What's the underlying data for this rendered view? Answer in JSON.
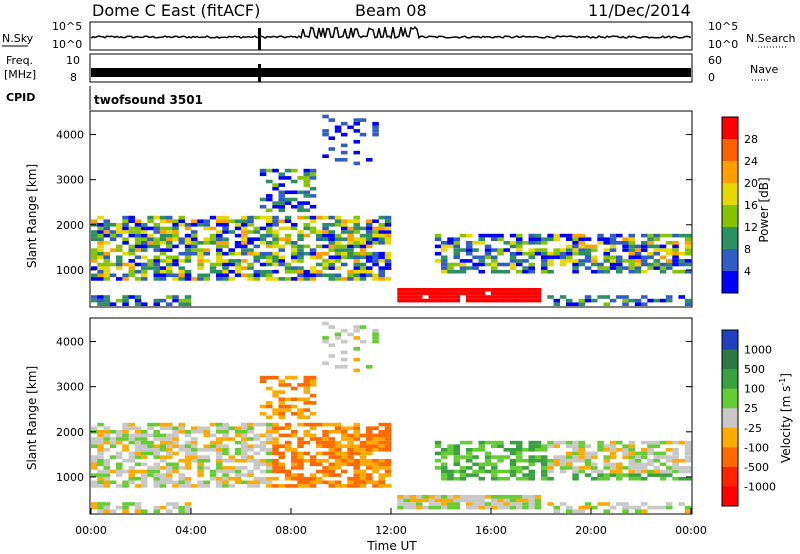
{
  "header": {
    "title": "Dome C East (fitACF)",
    "beam": "Beam 08",
    "date": "11/Dec/2014"
  },
  "strips": {
    "nsky_label": "N.Sky",
    "nsky_ticks": [
      "10^5",
      "10^0"
    ],
    "nsearch_label": "N.Search",
    "nsearch_ticks": [
      "10^5",
      "10^0"
    ],
    "freq_label": "Freq.",
    "freq_unit": "[MHz]",
    "freq_ticks": [
      "10",
      "8"
    ],
    "nave_label": "Nave",
    "nave_ticks": [
      "60",
      "0"
    ],
    "cpid_label": "CPID",
    "cpid_text": "twofsound 3501"
  },
  "chart_data": [
    {
      "type": "heatmap",
      "name": "power",
      "ylabel": "Slant Range [km]",
      "yticks": [
        "1000",
        "2000",
        "3000",
        "4000"
      ],
      "ylim": [
        200,
        4500
      ],
      "xlim": [
        0,
        24
      ],
      "colorbar_label": "Power [dB]",
      "colorbar_ticks": [
        "28",
        "24",
        "20",
        "16",
        "12",
        "8",
        "4"
      ],
      "colors": [
        "#ff0000",
        "#ff6000",
        "#ffa000",
        "#e6d800",
        "#84c400",
        "#2d9060",
        "#305ec4",
        "#0000ff"
      ]
    },
    {
      "type": "heatmap",
      "name": "velocity",
      "ylabel": "Slant Range [km]",
      "yticks": [
        "1000",
        "2000",
        "3000",
        "4000"
      ],
      "ylim": [
        200,
        4500
      ],
      "xlim": [
        0,
        24
      ],
      "xlabel": "Time UT",
      "xticks": [
        "00:00",
        "04:00",
        "08:00",
        "12:00",
        "16:00",
        "20:00",
        "00:00"
      ],
      "colorbar_label": "Velocity [m s",
      "colorbar_label_sup": "-1",
      "colorbar_label_end": "]",
      "colorbar_ticks": [
        "1000",
        "500",
        "100",
        "25",
        "-25",
        "-100",
        "-500",
        "-1000"
      ],
      "colors": [
        "#2040c0",
        "#2d7a40",
        "#3aa040",
        "#66cc33",
        "#c8c8c8",
        "#ffaa00",
        "#ff6a00",
        "#ff2200",
        "#ff0000"
      ]
    }
  ]
}
